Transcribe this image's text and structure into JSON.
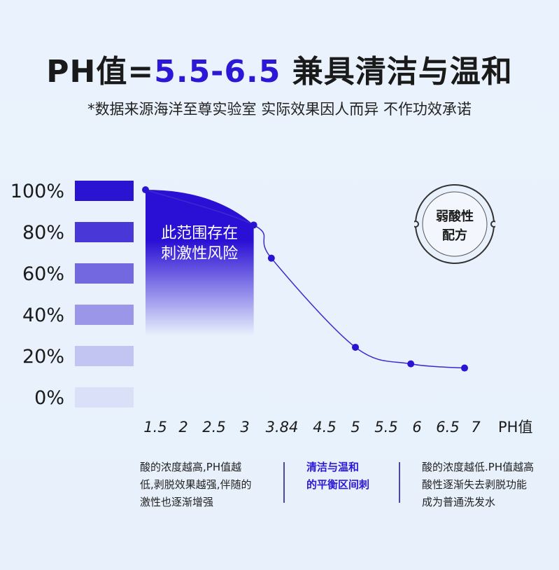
{
  "header": {
    "title_prefix": "PH值=",
    "title_highlight": "5.5-6.5",
    "title_suffix": " 兼具清洁与温和",
    "subtitle": "*数据来源海洋至尊实验室 实际效果因人而异 不作功效承诺"
  },
  "badge": {
    "line1": "弱酸性",
    "line2": "配方"
  },
  "colors": {
    "accent": "#2b17d6",
    "background": "#e9f2fc"
  },
  "chart_data": {
    "type": "line",
    "xlabel": "PH值",
    "x_ticks": [
      "1.5",
      "2",
      "2.5",
      "3",
      "3.84",
      "4.5",
      "5",
      "5.5",
      "6",
      "6.5",
      "7"
    ],
    "y_ticks": [
      "100%",
      "80%",
      "60%",
      "40%",
      "20%",
      "0%"
    ],
    "ylim": [
      0,
      100
    ],
    "legend_bar_colors": [
      "#2a14d2",
      "#4a37d8",
      "#7468e0",
      "#9b96e8",
      "#c2c4f2",
      "#d9e0f7"
    ],
    "points": [
      {
        "x": 1.5,
        "y": 100
      },
      {
        "x": 3.2,
        "y": 83
      },
      {
        "x": 3.6,
        "y": 67
      },
      {
        "x": 5.0,
        "y": 24
      },
      {
        "x": 5.9,
        "y": 16
      },
      {
        "x": 6.8,
        "y": 14
      }
    ],
    "shaded_region_label": [
      "此范围存在",
      "刺激性风险"
    ],
    "grid": false
  },
  "notes": {
    "left": [
      "酸的浓度越高,PH值越",
      "低,剥脱效果越强,伴随的",
      "激性也逐渐增强"
    ],
    "middle": [
      "清洁与温和",
      "的平衡区间刺"
    ],
    "right": [
      "酸的浓度越低.PH值越高",
      "酸性逐渐失去剥脱功能",
      "成为普通洗发水"
    ]
  }
}
